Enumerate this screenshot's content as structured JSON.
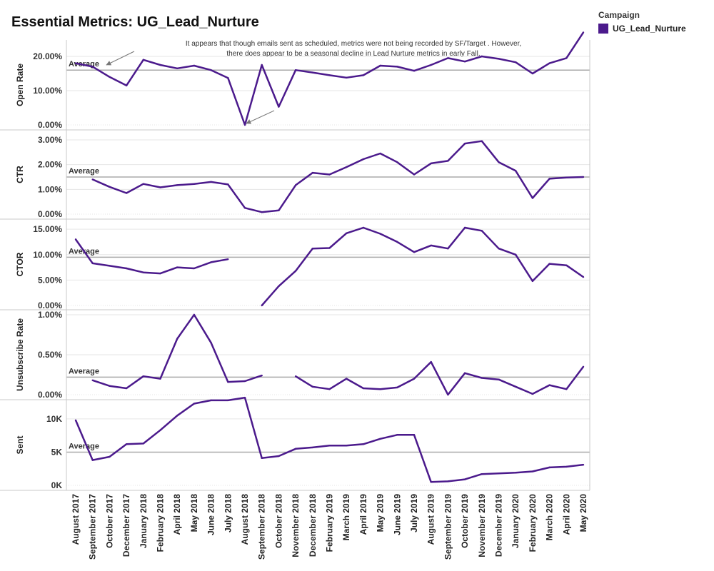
{
  "header": {
    "title": "Essential Metrics: UG_Lead_Nurture"
  },
  "legend": {
    "title": "Campaign",
    "items": [
      {
        "label": "UG_Lead_Nurture",
        "color": "#4b1a8c"
      }
    ]
  },
  "annotation": "It appears that though emails sent as scheduled, metrics were not being recorded by SF/Target . However, there does appear to be a seasonal decline in Lead Nurture metrics in early Fall.",
  "colors": {
    "line": "#4b1a8c",
    "average": "#aaaaaa",
    "arrow": "#777777",
    "grid": "#e6e6e6",
    "border": "#c8c8c8"
  },
  "chart_data": {
    "type": "line",
    "x": [
      "August 2017",
      "September 2017",
      "October 2017",
      "December 2017",
      "January 2018",
      "February 2018",
      "April 2018",
      "May 2018",
      "June 2018",
      "July 2018",
      "August 2018",
      "September 2018",
      "October 2018",
      "November 2018",
      "December 2018",
      "February 2019",
      "March 2019",
      "April 2019",
      "May 2019",
      "June 2019",
      "July 2019",
      "August 2019",
      "September 2019",
      "October 2019",
      "November 2019",
      "December 2019",
      "January 2020",
      "February 2020",
      "March 2020",
      "April 2020",
      "May 2020"
    ],
    "panels": [
      {
        "ylabel": "Open Rate",
        "ylim": [
          0,
          0.25
        ],
        "ticks": [
          0,
          0.1,
          0.2
        ],
        "tick_labels": [
          "0.00%",
          "10.00%",
          "20.00%"
        ],
        "average": 0.16,
        "average_label": "Average",
        "values": [
          0.18,
          0.17,
          0.14,
          0.115,
          0.19,
          0.175,
          0.165,
          0.173,
          0.16,
          0.137,
          0.0,
          0.175,
          0.053,
          0.16,
          0.153,
          0.145,
          0.138,
          0.145,
          0.173,
          0.17,
          0.158,
          0.175,
          0.195,
          0.185,
          0.2,
          0.193,
          0.183,
          0.15,
          0.18,
          0.195,
          0.27
        ]
      },
      {
        "ylabel": "CTR",
        "ylim": [
          0,
          0.032
        ],
        "ticks": [
          0,
          0.01,
          0.02,
          0.03
        ],
        "tick_labels": [
          "0.00%",
          "1.00%",
          "2.00%",
          "3.00%"
        ],
        "average": 0.015,
        "average_label": "Average",
        "values": [
          null,
          0.014,
          0.011,
          0.0085,
          0.0122,
          0.0108,
          0.0117,
          0.0122,
          0.013,
          0.012,
          0.0025,
          0.0008,
          0.0015,
          0.0117,
          0.0167,
          0.016,
          0.019,
          0.0222,
          0.0245,
          0.021,
          0.016,
          0.0205,
          0.0215,
          0.0285,
          0.0295,
          0.021,
          0.0175,
          0.0065,
          0.0143,
          0.0148,
          0.015
        ]
      },
      {
        "ylabel": "CTOR",
        "ylim": [
          0,
          0.16
        ],
        "ticks": [
          0,
          0.05,
          0.1,
          0.15
        ],
        "tick_labels": [
          "0.00%",
          "5.00%",
          "10.00%",
          "15.00%"
        ],
        "average": 0.095,
        "average_label": "Average",
        "values": [
          0.13,
          0.083,
          0.078,
          0.073,
          0.065,
          0.063,
          0.075,
          0.073,
          0.085,
          0.091,
          null,
          0.0,
          0.038,
          0.068,
          0.112,
          0.113,
          0.142,
          0.153,
          0.141,
          0.125,
          0.105,
          0.118,
          0.112,
          0.153,
          0.147,
          0.112,
          0.1,
          0.048,
          0.082,
          0.079,
          0.056
        ]
      },
      {
        "ylabel": "Unsubscribe Rate",
        "ylim": [
          0,
          0.01
        ],
        "ticks": [
          0,
          0.005,
          0.01
        ],
        "tick_labels": [
          "0.00%",
          "0.50%",
          "1.00%"
        ],
        "average": 0.0022,
        "average_label": "Average",
        "values": [
          null,
          0.0018,
          0.0011,
          0.0008,
          0.0023,
          0.002,
          0.007,
          0.01,
          0.0065,
          0.0016,
          0.0017,
          0.0024,
          null,
          0.0023,
          0.001,
          0.0007,
          0.002,
          0.0008,
          0.0007,
          0.0009,
          0.002,
          0.0041,
          0.0,
          0.0027,
          0.0021,
          0.0019,
          0.001,
          0.0001,
          0.0012,
          0.0007,
          0.0035
        ]
      },
      {
        "ylabel": "Sent",
        "ylim": [
          0,
          13000
        ],
        "ticks": [
          0,
          5000,
          10000
        ],
        "tick_labels": [
          "0K",
          "5K",
          "10K"
        ],
        "average": 5000,
        "average_label": "Average",
        "values": [
          9800,
          3800,
          4300,
          6200,
          6300,
          8300,
          10500,
          12300,
          12800,
          12800,
          13200,
          4100,
          4400,
          5500,
          5700,
          6000,
          6000,
          6200,
          7000,
          7600,
          7600,
          500,
          600,
          900,
          1700,
          1800,
          1900,
          2100,
          2700,
          2800,
          3100
        ]
      }
    ]
  }
}
